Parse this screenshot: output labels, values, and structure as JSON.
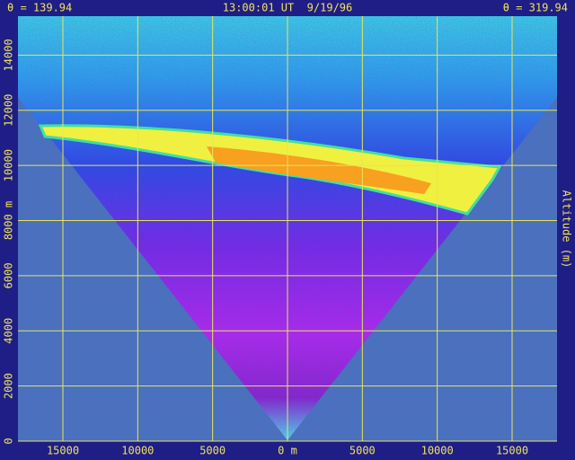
{
  "chart_data": {
    "type": "lidar-scan",
    "title": "13:00:01 UT  9/19/96",
    "annotations": [
      "θ = 139.94",
      "θ = 319.94"
    ],
    "y_label": "Altitude (m)",
    "xlim": [
      -18000,
      18000
    ],
    "xticks": [
      {
        "value": -15000,
        "label": "15000"
      },
      {
        "value": -10000,
        "label": "10000"
      },
      {
        "value": -5000,
        "label": "5000"
      },
      {
        "value": 0,
        "label": "0 m"
      },
      5000,
      10000,
      15000
    ],
    "ylim": [
      0,
      16000
    ],
    "yticks": [
      0,
      2000,
      4000,
      6000,
      {
        "value": 8000,
        "label": "8000 m"
      },
      10000,
      12000,
      14000
    ],
    "grid": true,
    "grid_color": "#e6e65a"
  }
}
